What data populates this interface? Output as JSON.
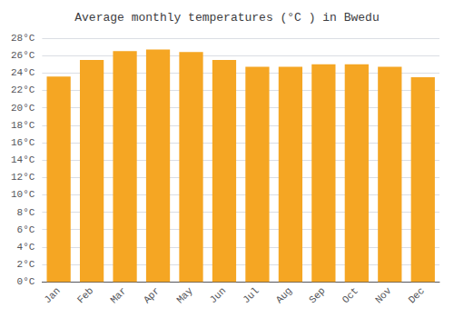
{
  "chart_data": {
    "type": "bar",
    "title": "Average monthly temperatures (°C ) in Bwedu",
    "categories": [
      "Jan",
      "Feb",
      "Mar",
      "Apr",
      "May",
      "Jun",
      "Jul",
      "Aug",
      "Sep",
      "Oct",
      "Nov",
      "Dec"
    ],
    "values": [
      23.6,
      25.5,
      26.5,
      26.7,
      26.4,
      25.5,
      24.7,
      24.7,
      25.0,
      25.0,
      24.7,
      23.5
    ],
    "color": "#F5A623",
    "ylim": [
      0,
      28
    ],
    "yticks": [
      {
        "value": 0,
        "label": "0°C"
      },
      {
        "value": 2,
        "label": "2°C"
      },
      {
        "value": 4,
        "label": "4°C"
      },
      {
        "value": 6,
        "label": "6°C"
      },
      {
        "value": 8,
        "label": "8°C"
      },
      {
        "value": 10,
        "label": "10°C"
      },
      {
        "value": 12,
        "label": "12°C"
      },
      {
        "value": 14,
        "label": "14°C"
      },
      {
        "value": 16,
        "label": "16°C"
      },
      {
        "value": 18,
        "label": "18°C"
      },
      {
        "value": 20,
        "label": "20°C"
      },
      {
        "value": 22,
        "label": "22°C"
      },
      {
        "value": 24,
        "label": "24°C"
      },
      {
        "value": 26,
        "label": "26°C"
      },
      {
        "value": 28,
        "label": "28°C"
      }
    ],
    "grid": true
  }
}
